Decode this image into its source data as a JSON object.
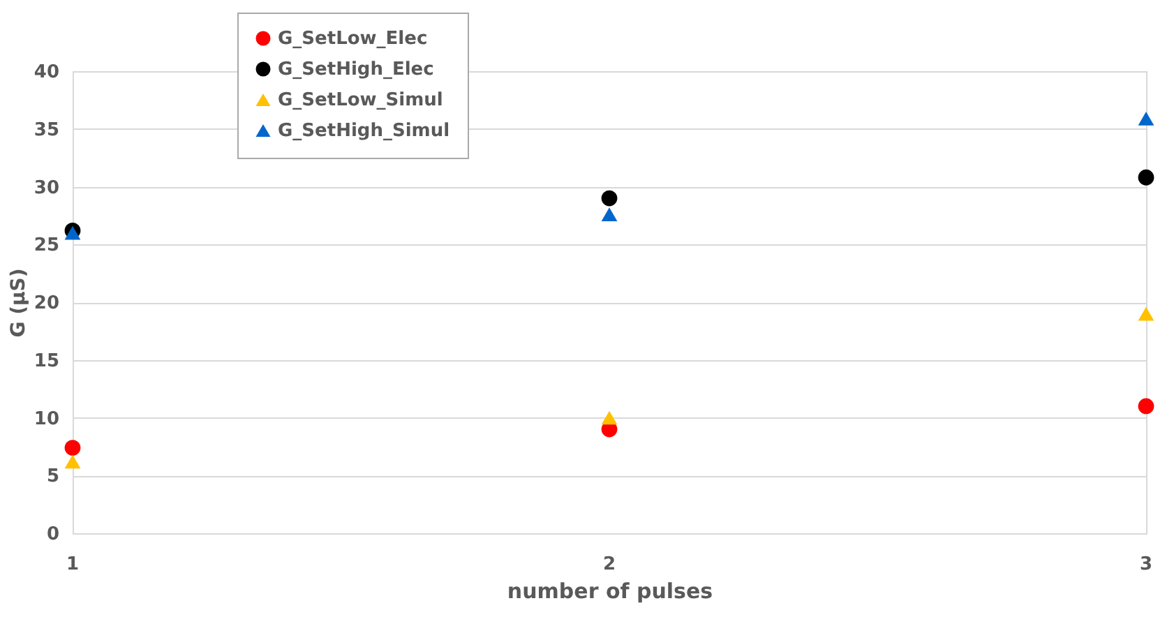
{
  "chart_data": {
    "type": "scatter",
    "xlabel": "number of pulses",
    "ylabel": "G (µS)",
    "x": [
      1,
      2,
      3
    ],
    "xlim": [
      1,
      3
    ],
    "xticks": [
      1,
      2,
      3
    ],
    "ylim": [
      0,
      40
    ],
    "yticks": [
      0,
      5,
      10,
      15,
      20,
      25,
      30,
      35,
      40
    ],
    "grid": true,
    "legend": "top",
    "series": [
      {
        "name": "G_SetLow_Elec",
        "color": "#ff0000",
        "marker": "circle",
        "values": [
          7.4,
          9.0,
          11.0
        ]
      },
      {
        "name": "G_SetHigh_Elec",
        "color": "#000000",
        "marker": "circle",
        "values": [
          26.2,
          29.0,
          30.8
        ]
      },
      {
        "name": "G_SetLow_Simul",
        "color": "#ffc000",
        "marker": "triangle",
        "values": [
          6.2,
          10.0,
          19.0
        ]
      },
      {
        "name": "G_SetHigh_Simul",
        "color": "#0066cc",
        "marker": "triangle",
        "values": [
          26.0,
          27.6,
          35.9
        ]
      }
    ]
  }
}
